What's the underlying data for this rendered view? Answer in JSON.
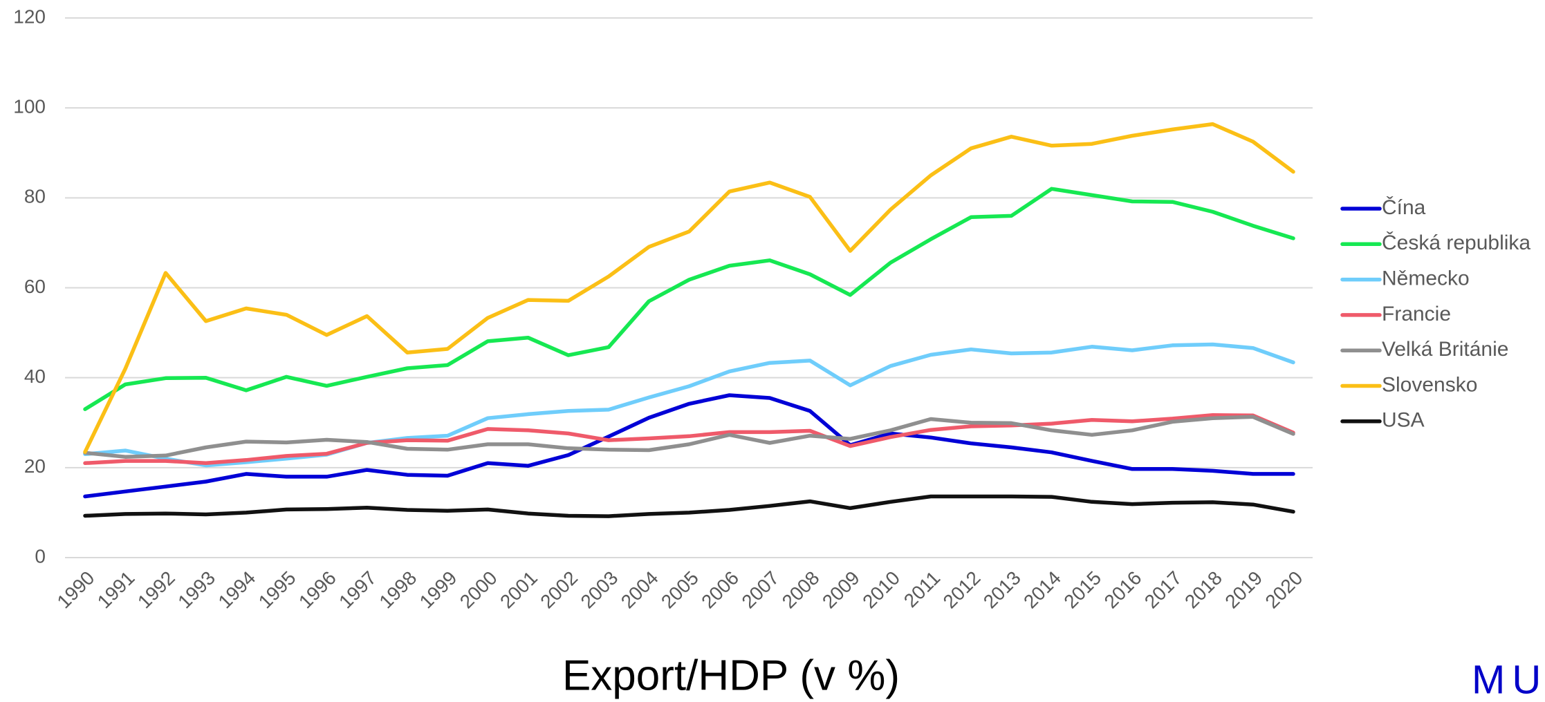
{
  "chart_data": {
    "type": "line",
    "title": "Export/HDP (v %)",
    "logo": "MU",
    "categories": [
      "1990",
      "1991",
      "1992",
      "1993",
      "1994",
      "1995",
      "1996",
      "1997",
      "1998",
      "1999",
      "2000",
      "2001",
      "2002",
      "2003",
      "2004",
      "2005",
      "2006",
      "2007",
      "2008",
      "2009",
      "2010",
      "2011",
      "2012",
      "2013",
      "2014",
      "2015",
      "2016",
      "2017",
      "2018",
      "2019",
      "2020"
    ],
    "ylim": [
      0,
      120
    ],
    "yticks": [
      0,
      20,
      40,
      60,
      80,
      100,
      120
    ],
    "grid": true,
    "legend": "right",
    "series": [
      {
        "name": "Čína",
        "color": "#0000d6",
        "values": [
          13.6,
          14.7,
          15.8,
          16.9,
          18.6,
          18.0,
          18.0,
          19.5,
          18.4,
          18.2,
          21.0,
          20.4,
          22.8,
          26.9,
          31.1,
          34.2,
          36.1,
          35.5,
          32.6,
          25.0,
          27.6,
          26.7,
          25.4,
          24.5,
          23.4,
          21.5,
          19.7,
          19.7,
          19.3,
          18.6,
          18.6
        ]
      },
      {
        "name": "Česká republika",
        "color": "#16e852",
        "values": [
          33.0,
          38.5,
          39.9,
          40.0,
          37.2,
          40.2,
          38.2,
          40.2,
          42.1,
          42.8,
          48.1,
          48.9,
          45.0,
          46.8,
          57.0,
          61.8,
          64.9,
          66.1,
          63.0,
          58.4,
          65.6,
          70.8,
          75.7,
          76.0,
          82.0,
          80.6,
          79.2,
          79.1,
          76.9,
          73.8,
          71.0
        ]
      },
      {
        "name": "Německo",
        "color": "#6fcdfb",
        "values": [
          23.0,
          23.8,
          22.0,
          20.5,
          21.2,
          22.0,
          22.9,
          25.5,
          26.6,
          27.1,
          31.0,
          31.9,
          32.6,
          32.9,
          35.6,
          38.1,
          41.4,
          43.3,
          43.8,
          38.3,
          42.6,
          45.1,
          46.3,
          45.4,
          45.6,
          46.9,
          46.1,
          47.2,
          47.4,
          46.6,
          43.4
        ]
      },
      {
        "name": "Francie",
        "color": "#ef5a6a",
        "values": [
          21.0,
          21.5,
          21.5,
          21.0,
          21.7,
          22.6,
          23.1,
          25.5,
          26.1,
          26.0,
          28.6,
          28.3,
          27.6,
          26.1,
          26.5,
          27.0,
          27.9,
          27.9,
          28.2,
          24.8,
          26.8,
          28.4,
          29.2,
          29.4,
          29.8,
          30.6,
          30.3,
          30.9,
          31.7,
          31.6,
          27.8
        ]
      },
      {
        "name": "Velká Británie",
        "color": "#8f8f8f",
        "values": [
          23.3,
          22.4,
          22.7,
          24.5,
          25.8,
          25.6,
          26.2,
          25.7,
          24.2,
          24.0,
          25.2,
          25.2,
          24.3,
          24.0,
          23.9,
          25.2,
          27.3,
          25.5,
          27.1,
          26.4,
          28.3,
          30.8,
          30.0,
          29.9,
          28.3,
          27.3,
          28.3,
          30.2,
          31.0,
          31.3,
          27.5
        ]
      },
      {
        "name": "Slovensko",
        "color": "#fbbf16",
        "values": [
          23.5,
          42.0,
          63.3,
          52.6,
          55.4,
          54.0,
          49.5,
          53.7,
          45.6,
          46.4,
          53.3,
          57.3,
          57.1,
          62.5,
          69.1,
          72.5,
          81.4,
          83.4,
          80.2,
          68.2,
          77.4,
          85.0,
          91.0,
          93.6,
          91.6,
          92.0,
          93.8,
          95.2,
          96.4,
          92.5,
          85.8
        ]
      },
      {
        "name": "USA",
        "color": "#111111",
        "values": [
          9.3,
          9.7,
          9.8,
          9.6,
          10.0,
          10.7,
          10.8,
          11.1,
          10.6,
          10.4,
          10.7,
          9.8,
          9.3,
          9.2,
          9.7,
          10.0,
          10.6,
          11.5,
          12.5,
          11.0,
          12.4,
          13.6,
          13.6,
          13.6,
          13.5,
          12.4,
          11.9,
          12.2,
          12.3,
          11.8,
          10.2
        ]
      }
    ]
  }
}
